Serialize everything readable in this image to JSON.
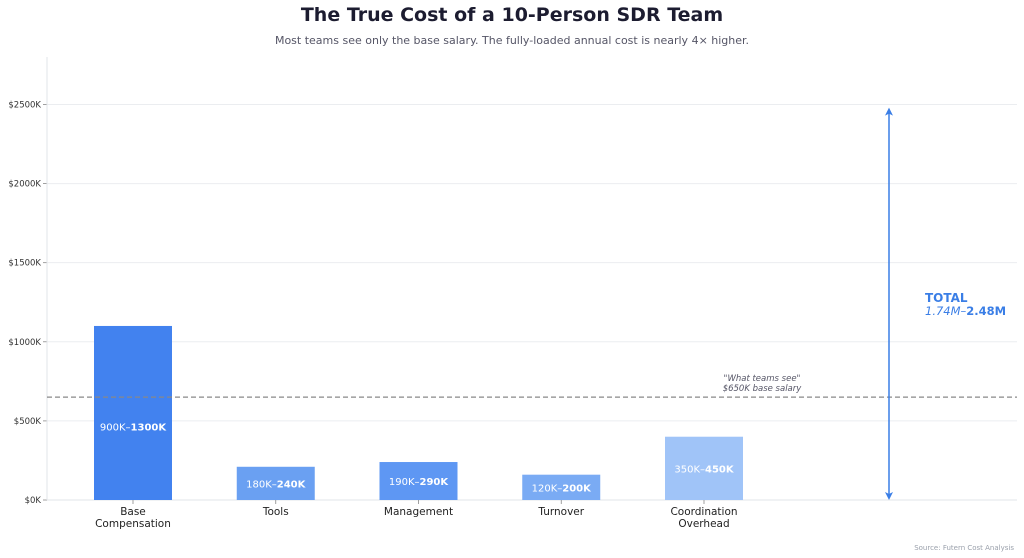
{
  "title": "The True Cost of a 10-Person SDR Team",
  "subtitle": "Most teams see only the base salary. The fully-loaded annual cost is nearly 4× higher.",
  "source": "Source: Futern Cost Analysis",
  "colors": {
    "primary": "#4282ef",
    "medium": "#5e97f3",
    "light": "#a0c4f8",
    "accent": "#3a7ee6",
    "baseline": "#888888"
  },
  "chart_data": {
    "type": "bar",
    "title": "The True Cost of a 10-Person SDR Team",
    "subtitle": "Most teams see only the base salary. The fully-loaded annual cost is nearly 4× higher.",
    "xlabel": "",
    "ylabel": "",
    "ylim": [
      0,
      2800
    ],
    "yunit": "K",
    "yticks": [
      0,
      500,
      1000,
      1500,
      2000,
      2500
    ],
    "ytick_labels": [
      "$0K",
      "$500K",
      "$1000K",
      "$1500K",
      "$2000K",
      "$2500K"
    ],
    "grid": true,
    "categories": [
      {
        "label": [
          "Base",
          "Compensation"
        ],
        "value": 1100,
        "range_low": "900K–",
        "range_high": "1300K",
        "color": "#4282ef"
      },
      {
        "label": [
          "Tools"
        ],
        "value": 210,
        "range_low": "180K–",
        "range_high": "240K",
        "color": "#6aa0f2"
      },
      {
        "label": [
          "Management"
        ],
        "value": 240,
        "range_low": "190K–",
        "range_high": "290K",
        "color": "#5e97f3"
      },
      {
        "label": [
          "Turnover"
        ],
        "value": 160,
        "range_low": "120K–",
        "range_high": "200K",
        "color": "#7aabf4"
      },
      {
        "label": [
          "Coordination",
          "Overhead"
        ],
        "value": 400,
        "range_low": "350K–",
        "range_high": "450K",
        "color": "#a0c4f8"
      }
    ],
    "baseline": {
      "value": 650,
      "label1": "\"What teams see\"",
      "label2": "$650K base salary"
    },
    "total": {
      "from": 0,
      "to": 2480,
      "label": "TOTAL",
      "range_low": "1.74M–",
      "range_high": "2.48M"
    }
  }
}
